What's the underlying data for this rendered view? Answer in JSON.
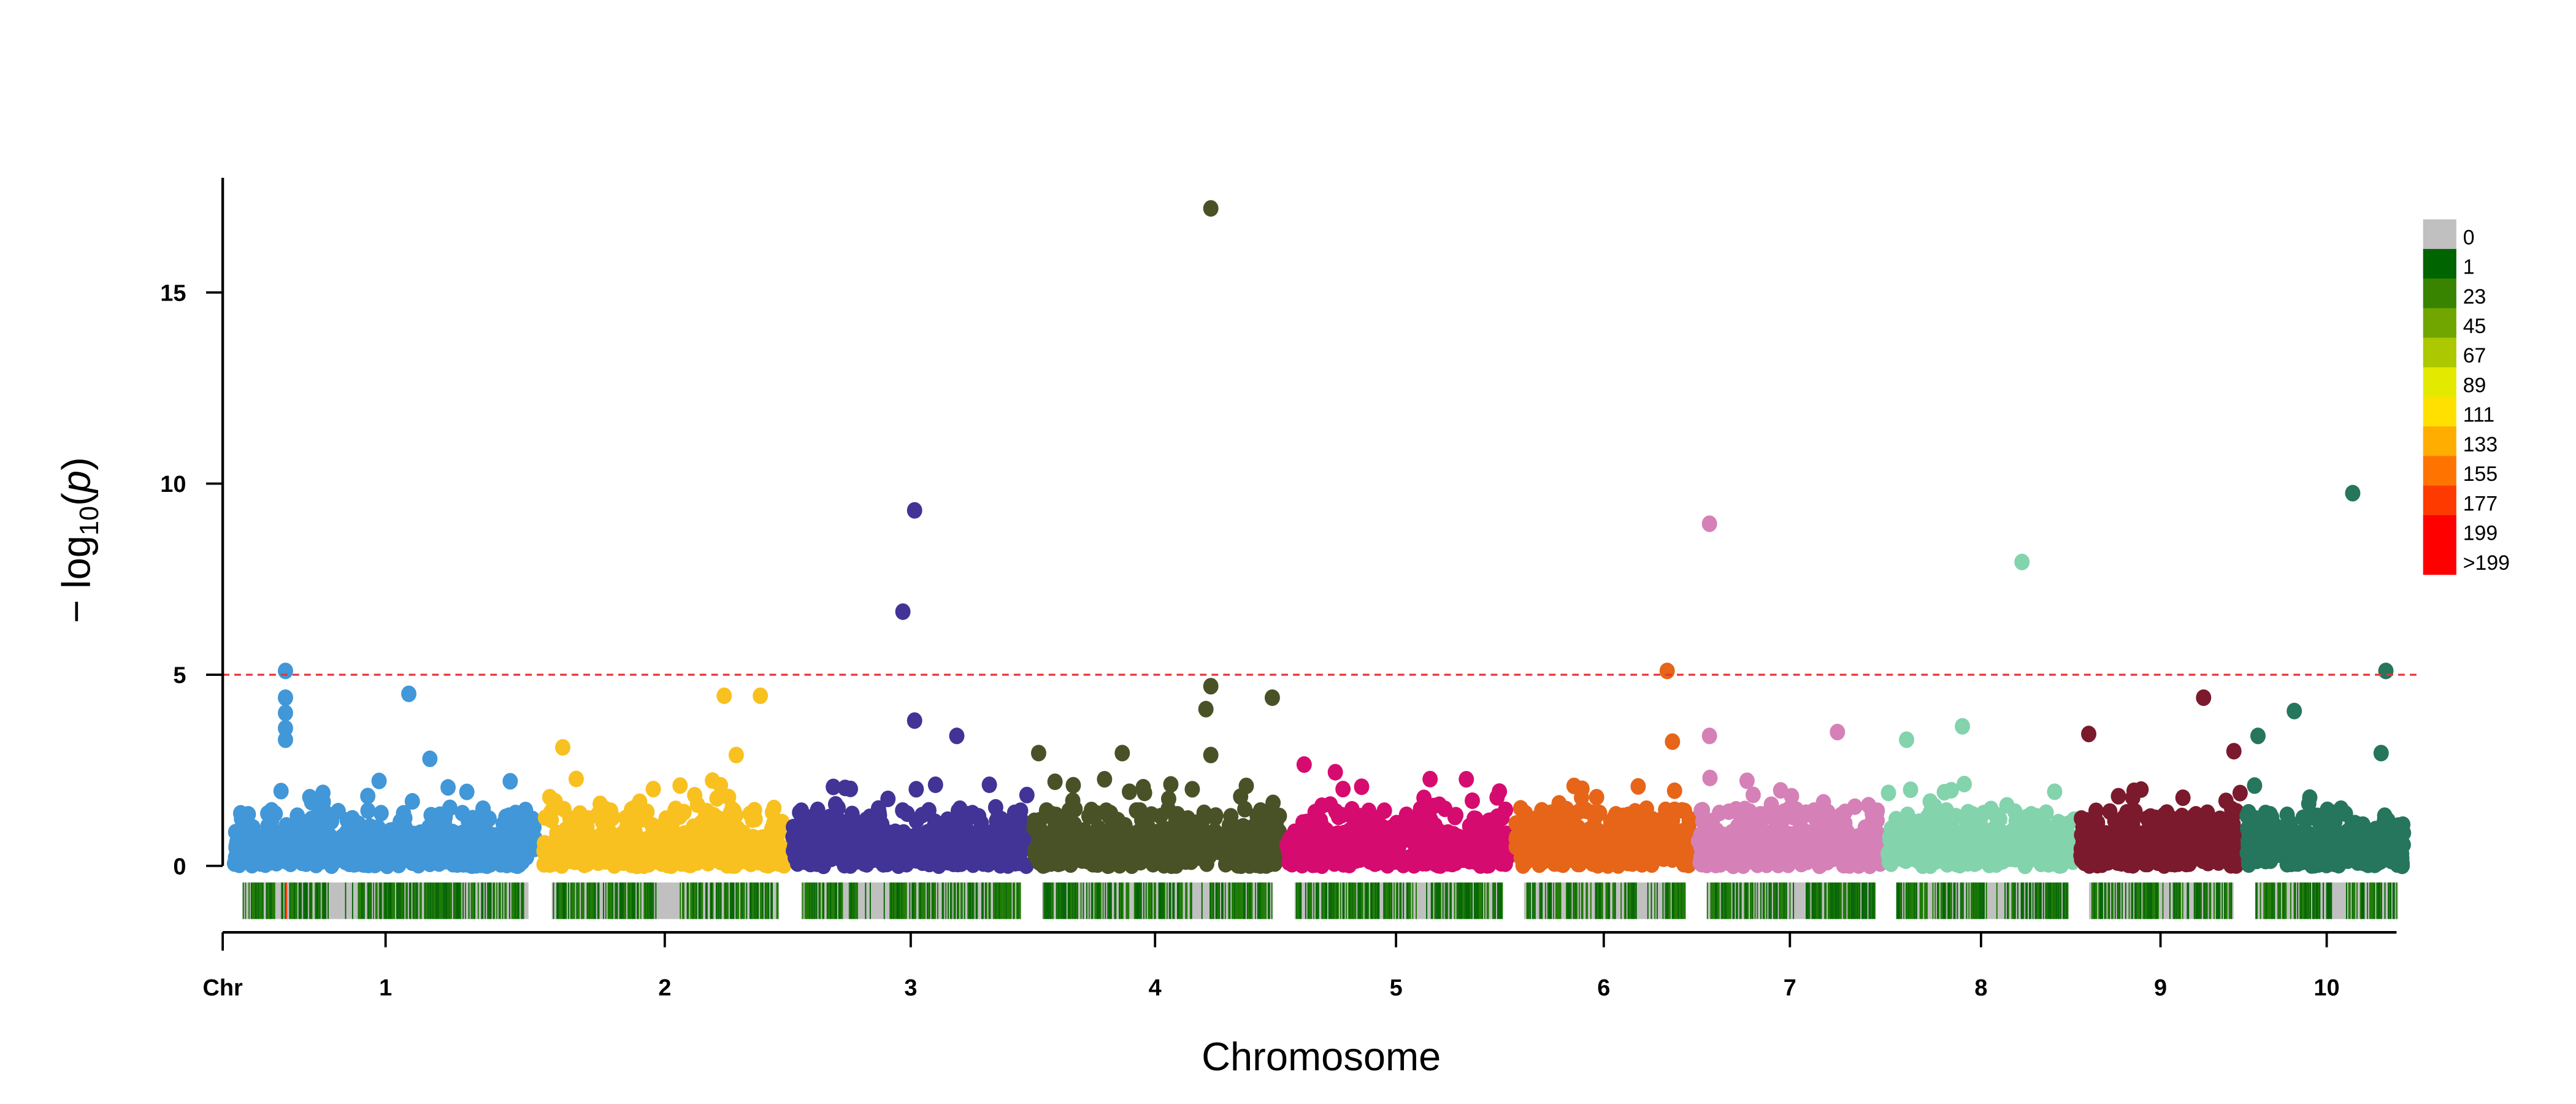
{
  "chart_data": {
    "type": "scatter",
    "subtype": "manhattan",
    "title": "",
    "xlabel": "Chromosome",
    "ylabel": "-log10(p)",
    "ylim": [
      0,
      18
    ],
    "yticks": [
      0,
      5,
      10,
      15
    ],
    "x_axis_prefix_label": "Chr",
    "chromosomes": [
      "1",
      "2",
      "3",
      "4",
      "5",
      "6",
      "7",
      "8",
      "9",
      "10"
    ],
    "chromosome_colors": [
      "#4197d8",
      "#f8c120",
      "#413496",
      "#495227",
      "#d60b6f",
      "#e66519",
      "#d581b7",
      "#83d3ad",
      "#7b1a2d",
      "#26755d"
    ],
    "threshold": {
      "value": 5,
      "color": "#e8343a",
      "style": "dashed"
    },
    "grid": false,
    "notable_points": [
      {
        "chr": "1",
        "pos_frac": 0.17,
        "y": 5.1
      },
      {
        "chr": "1",
        "pos_frac": 0.17,
        "y": 4.4
      },
      {
        "chr": "1",
        "pos_frac": 0.17,
        "y": 4.0
      },
      {
        "chr": "1",
        "pos_frac": 0.17,
        "y": 3.6
      },
      {
        "chr": "1",
        "pos_frac": 0.17,
        "y": 3.3
      },
      {
        "chr": "1",
        "pos_frac": 0.58,
        "y": 4.5
      },
      {
        "chr": "1",
        "pos_frac": 0.65,
        "y": 2.8
      },
      {
        "chr": "2",
        "pos_frac": 0.08,
        "y": 3.1
      },
      {
        "chr": "2",
        "pos_frac": 0.75,
        "y": 4.45
      },
      {
        "chr": "2",
        "pos_frac": 0.9,
        "y": 4.45
      },
      {
        "chr": "2",
        "pos_frac": 0.8,
        "y": 2.9
      },
      {
        "chr": "3",
        "pos_frac": 0.52,
        "y": 9.3
      },
      {
        "chr": "3",
        "pos_frac": 0.47,
        "y": 6.65
      },
      {
        "chr": "3",
        "pos_frac": 0.52,
        "y": 3.8
      },
      {
        "chr": "3",
        "pos_frac": 0.7,
        "y": 3.4
      },
      {
        "chr": "4",
        "pos_frac": 0.02,
        "y": 2.95
      },
      {
        "chr": "4",
        "pos_frac": 0.72,
        "y": 17.2
      },
      {
        "chr": "4",
        "pos_frac": 0.72,
        "y": 4.7
      },
      {
        "chr": "4",
        "pos_frac": 0.7,
        "y": 4.1
      },
      {
        "chr": "4",
        "pos_frac": 0.97,
        "y": 4.4
      },
      {
        "chr": "4",
        "pos_frac": 0.72,
        "y": 2.9
      },
      {
        "chr": "4",
        "pos_frac": 0.36,
        "y": 2.95
      },
      {
        "chr": "5",
        "pos_frac": 0.08,
        "y": 2.65
      },
      {
        "chr": "5",
        "pos_frac": 0.22,
        "y": 2.45
      },
      {
        "chr": "6",
        "pos_frac": 0.86,
        "y": 5.1
      },
      {
        "chr": "6",
        "pos_frac": 0.89,
        "y": 3.25
      },
      {
        "chr": "7",
        "pos_frac": 0.06,
        "y": 8.95
      },
      {
        "chr": "7",
        "pos_frac": 0.06,
        "y": 3.4
      },
      {
        "chr": "7",
        "pos_frac": 0.76,
        "y": 3.5
      },
      {
        "chr": "8",
        "pos_frac": 0.72,
        "y": 7.95
      },
      {
        "chr": "8",
        "pos_frac": 0.4,
        "y": 3.65
      },
      {
        "chr": "8",
        "pos_frac": 0.1,
        "y": 3.3
      },
      {
        "chr": "9",
        "pos_frac": 0.77,
        "y": 4.4
      },
      {
        "chr": "9",
        "pos_frac": 0.05,
        "y": 3.45
      },
      {
        "chr": "9",
        "pos_frac": 0.96,
        "y": 3.0
      },
      {
        "chr": "10",
        "pos_frac": 0.67,
        "y": 9.75
      },
      {
        "chr": "10",
        "pos_frac": 0.88,
        "y": 5.1
      },
      {
        "chr": "10",
        "pos_frac": 0.3,
        "y": 4.05
      },
      {
        "chr": "10",
        "pos_frac": 0.07,
        "y": 3.4
      },
      {
        "chr": "10",
        "pos_frac": 0.85,
        "y": 2.95
      }
    ],
    "density_legend": {
      "labels": [
        "0",
        "1",
        "23",
        "45",
        "67",
        "89",
        "111",
        "133",
        "155",
        "177",
        "199",
        ">199"
      ],
      "colors": [
        "#c0c0c0",
        "#006400",
        "#388400",
        "#71a600",
        "#abc800",
        "#e3ea00",
        "#ffe000",
        "#ffad00",
        "#ff7400",
        "#ff3a00",
        "#ff0000",
        "#ff0000"
      ]
    }
  }
}
